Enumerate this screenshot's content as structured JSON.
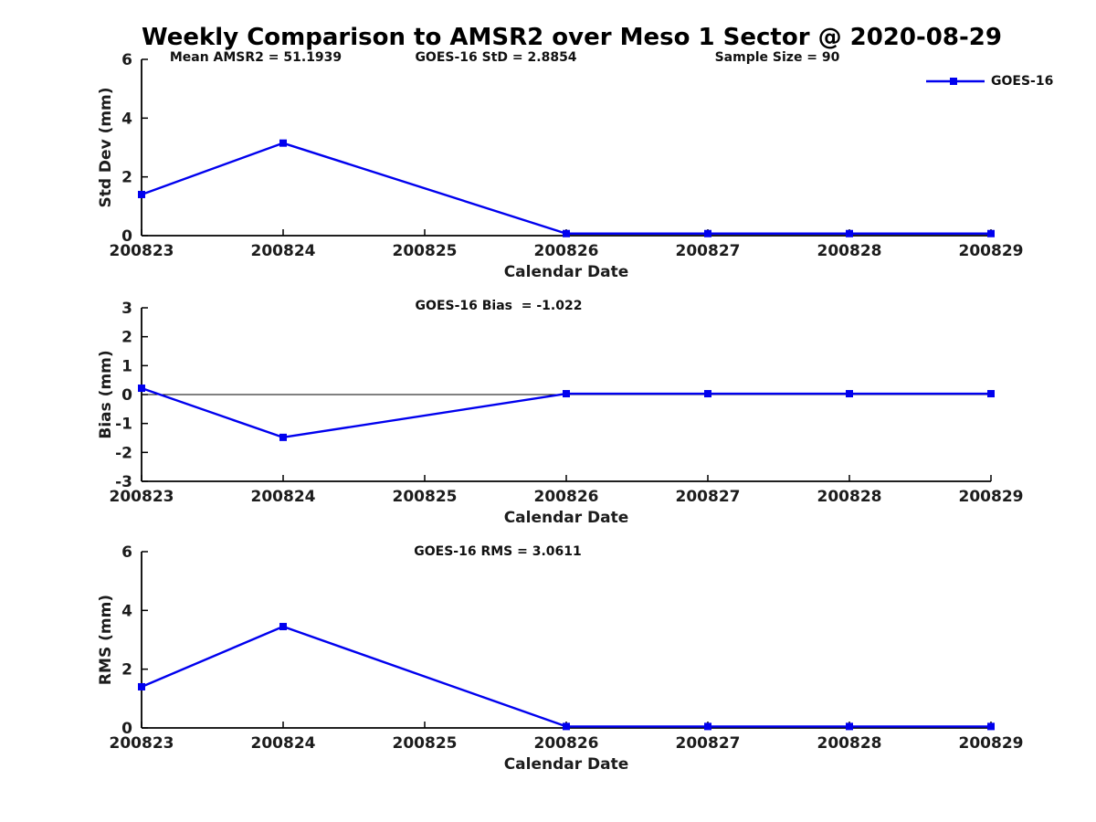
{
  "title": "Weekly Comparison to AMSR2 over Meso 1 Sector @ 2020-08-29",
  "legend": {
    "label": "GOES-16"
  },
  "colors": {
    "line": "#0000EE",
    "axis": "#000000",
    "zero_line": "#000000",
    "tick_text": "#1c1c1c"
  },
  "chart_data": [
    {
      "type": "line",
      "name": "std-dev-panel",
      "annotations": [
        "Mean AMSR2 = 51.1939",
        "GOES-16 StD = 2.8854",
        "Sample Size = 90"
      ],
      "series": [
        {
          "name": "GOES-16",
          "x": [
            200823,
            200824,
            200826,
            200827,
            200828,
            200829
          ],
          "y": [
            1.4,
            3.15,
            0.07,
            0.07,
            0.07,
            0.07
          ]
        }
      ],
      "xlabel": "Calendar Date",
      "ylabel": "Std Dev (mm)",
      "xlim": [
        200823,
        200829
      ],
      "ylim": [
        0,
        6
      ],
      "xticks": [
        200823,
        200824,
        200825,
        200826,
        200827,
        200828,
        200829
      ],
      "yticks": [
        0,
        2,
        4,
        6
      ],
      "zero_line": false,
      "grid": false,
      "legend_position": "top-right",
      "marker": "square"
    },
    {
      "type": "line",
      "name": "bias-panel",
      "annotations": [
        "GOES-16 Bias  = -1.022"
      ],
      "series": [
        {
          "name": "GOES-16",
          "x": [
            200823,
            200824,
            200826,
            200827,
            200828,
            200829
          ],
          "y": [
            0.22,
            -1.48,
            0.03,
            0.03,
            0.03,
            0.03
          ]
        }
      ],
      "xlabel": "Calendar Date",
      "ylabel": "Bias (mm)",
      "xlim": [
        200823,
        200829
      ],
      "ylim": [
        -3,
        3
      ],
      "xticks": [
        200823,
        200824,
        200825,
        200826,
        200827,
        200828,
        200829
      ],
      "yticks": [
        -3,
        -2,
        -1,
        0,
        1,
        2,
        3
      ],
      "zero_line": true,
      "grid": false,
      "marker": "square"
    },
    {
      "type": "line",
      "name": "rms-panel",
      "annotations": [
        "GOES-16 RMS = 3.0611"
      ],
      "series": [
        {
          "name": "GOES-16",
          "x": [
            200823,
            200824,
            200826,
            200827,
            200828,
            200829
          ],
          "y": [
            1.4,
            3.45,
            0.05,
            0.05,
            0.05,
            0.05
          ]
        }
      ],
      "xlabel": "Calendar Date",
      "ylabel": "RMS (mm)",
      "xlim": [
        200823,
        200829
      ],
      "ylim": [
        0,
        6
      ],
      "xticks": [
        200823,
        200824,
        200825,
        200826,
        200827,
        200828,
        200829
      ],
      "yticks": [
        0,
        2,
        4,
        6
      ],
      "zero_line": false,
      "grid": false,
      "marker": "square"
    }
  ]
}
